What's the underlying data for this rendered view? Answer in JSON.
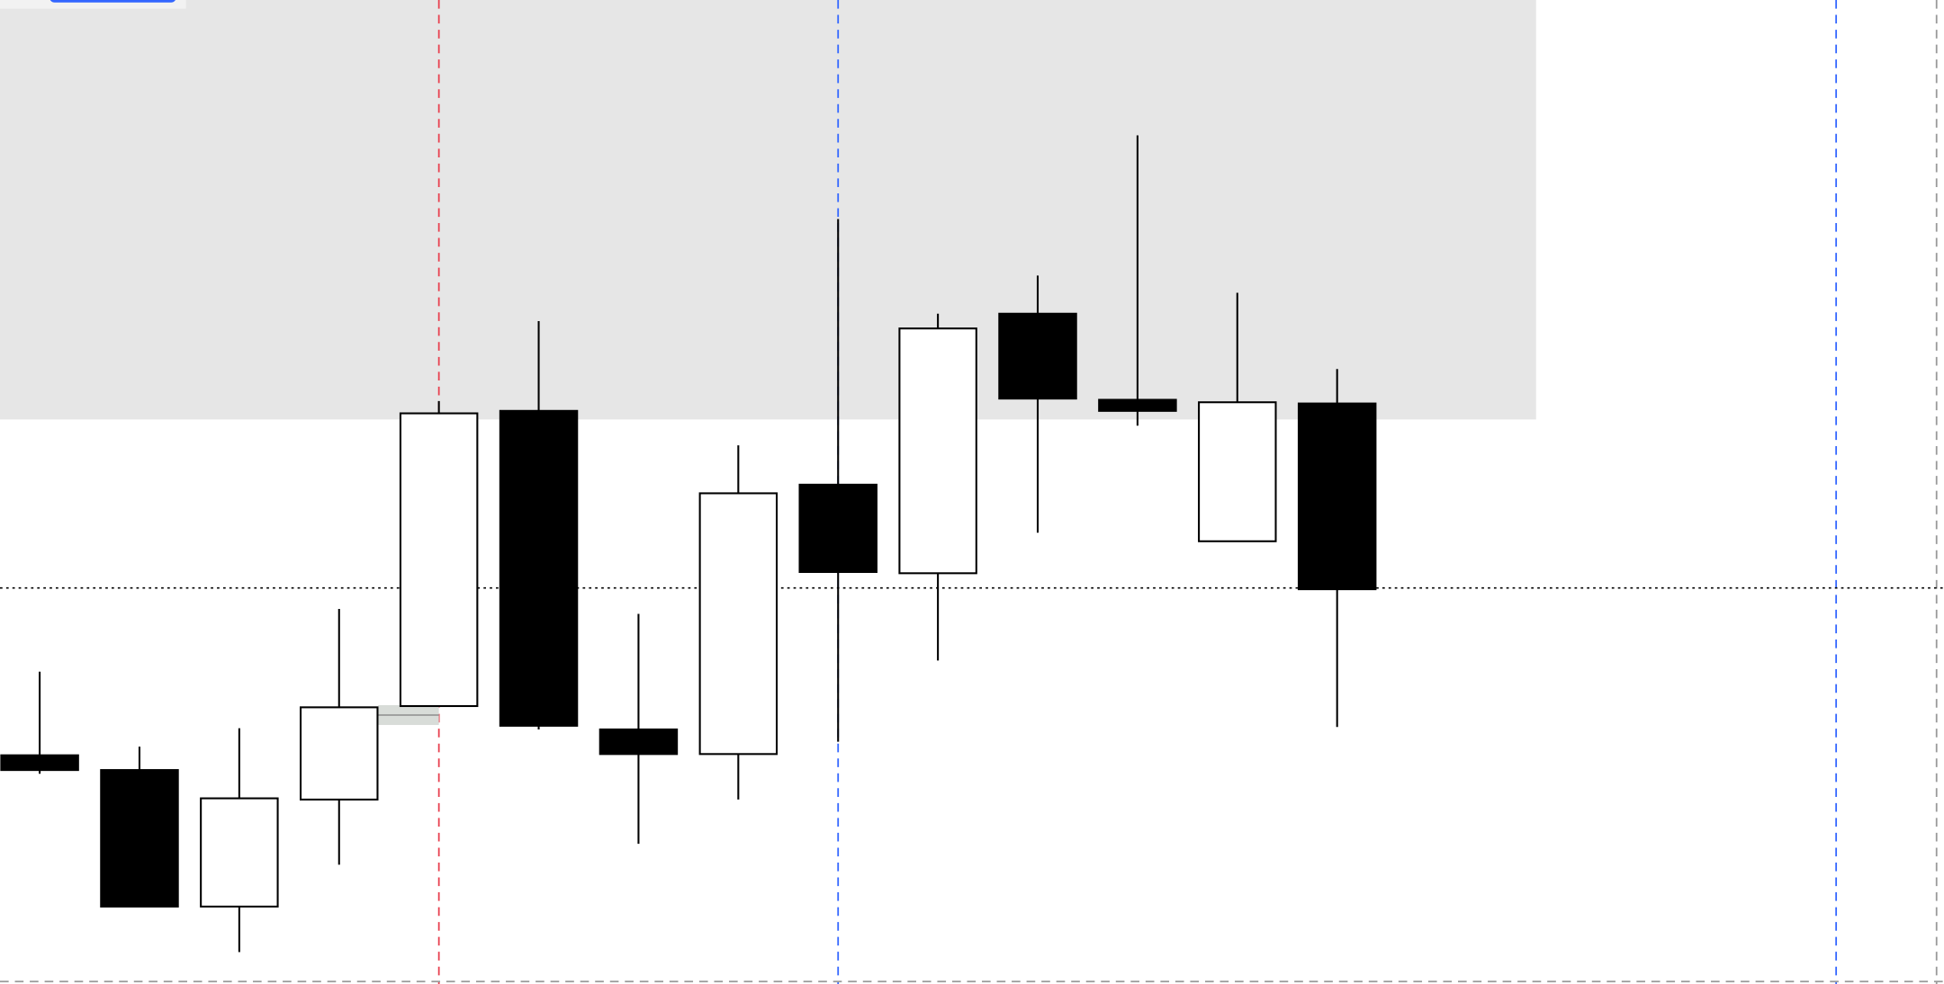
{
  "chart_data": {
    "type": "candlestick",
    "title": "",
    "xlabel": "",
    "ylabel": "",
    "ylim": [
      0,
      800
    ],
    "grid": false,
    "candles": [
      {
        "open": 192,
        "high": 260,
        "low": 177,
        "close": 180
      },
      {
        "open": 180,
        "high": 199,
        "low": 69,
        "close": 69
      },
      {
        "open": 69,
        "high": 214,
        "low": 32,
        "close": 157
      },
      {
        "open": 156,
        "high": 311,
        "low": 103,
        "close": 231
      },
      {
        "open": 232,
        "high": 480,
        "low": 232,
        "close": 470
      },
      {
        "open": 472,
        "high": 545,
        "low": 213,
        "close": 216
      },
      {
        "open": 213,
        "high": 307,
        "low": 120,
        "close": 193
      },
      {
        "open": 193,
        "high": 444,
        "low": 156,
        "close": 405
      },
      {
        "open": 412,
        "high": 628,
        "low": 203,
        "close": 341
      },
      {
        "open": 340,
        "high": 551,
        "low": 269,
        "close": 539
      },
      {
        "open": 551,
        "high": 582,
        "low": 373,
        "close": 482
      },
      {
        "open": 481,
        "high": 696,
        "low": 460,
        "close": 472
      },
      {
        "open": 366,
        "high": 568,
        "low": 366,
        "close": 479
      },
      {
        "open": 478,
        "high": 506,
        "low": 215,
        "close": 327
      }
    ],
    "shaded_zone": {
      "from": 465,
      "to": 800,
      "color": "#e6e6e6"
    },
    "horizontal_dotted_line": {
      "value": 328,
      "color": "#000000"
    },
    "vertical_lines": [
      {
        "candle_index": 4,
        "color": "#e8404f",
        "style": "dashed"
      },
      {
        "candle_index": 8,
        "color": "#3366ff",
        "style": "dashed"
      },
      {
        "candle_index": 18,
        "color": "#3366ff",
        "style": "dashed"
      },
      {
        "candle_index": 19,
        "color": "#999999",
        "style": "dashed"
      }
    ],
    "colors": {
      "bearish": "#000000",
      "bullish": "#ffffff",
      "outline": "#000000",
      "accent": "#3366ff"
    }
  }
}
